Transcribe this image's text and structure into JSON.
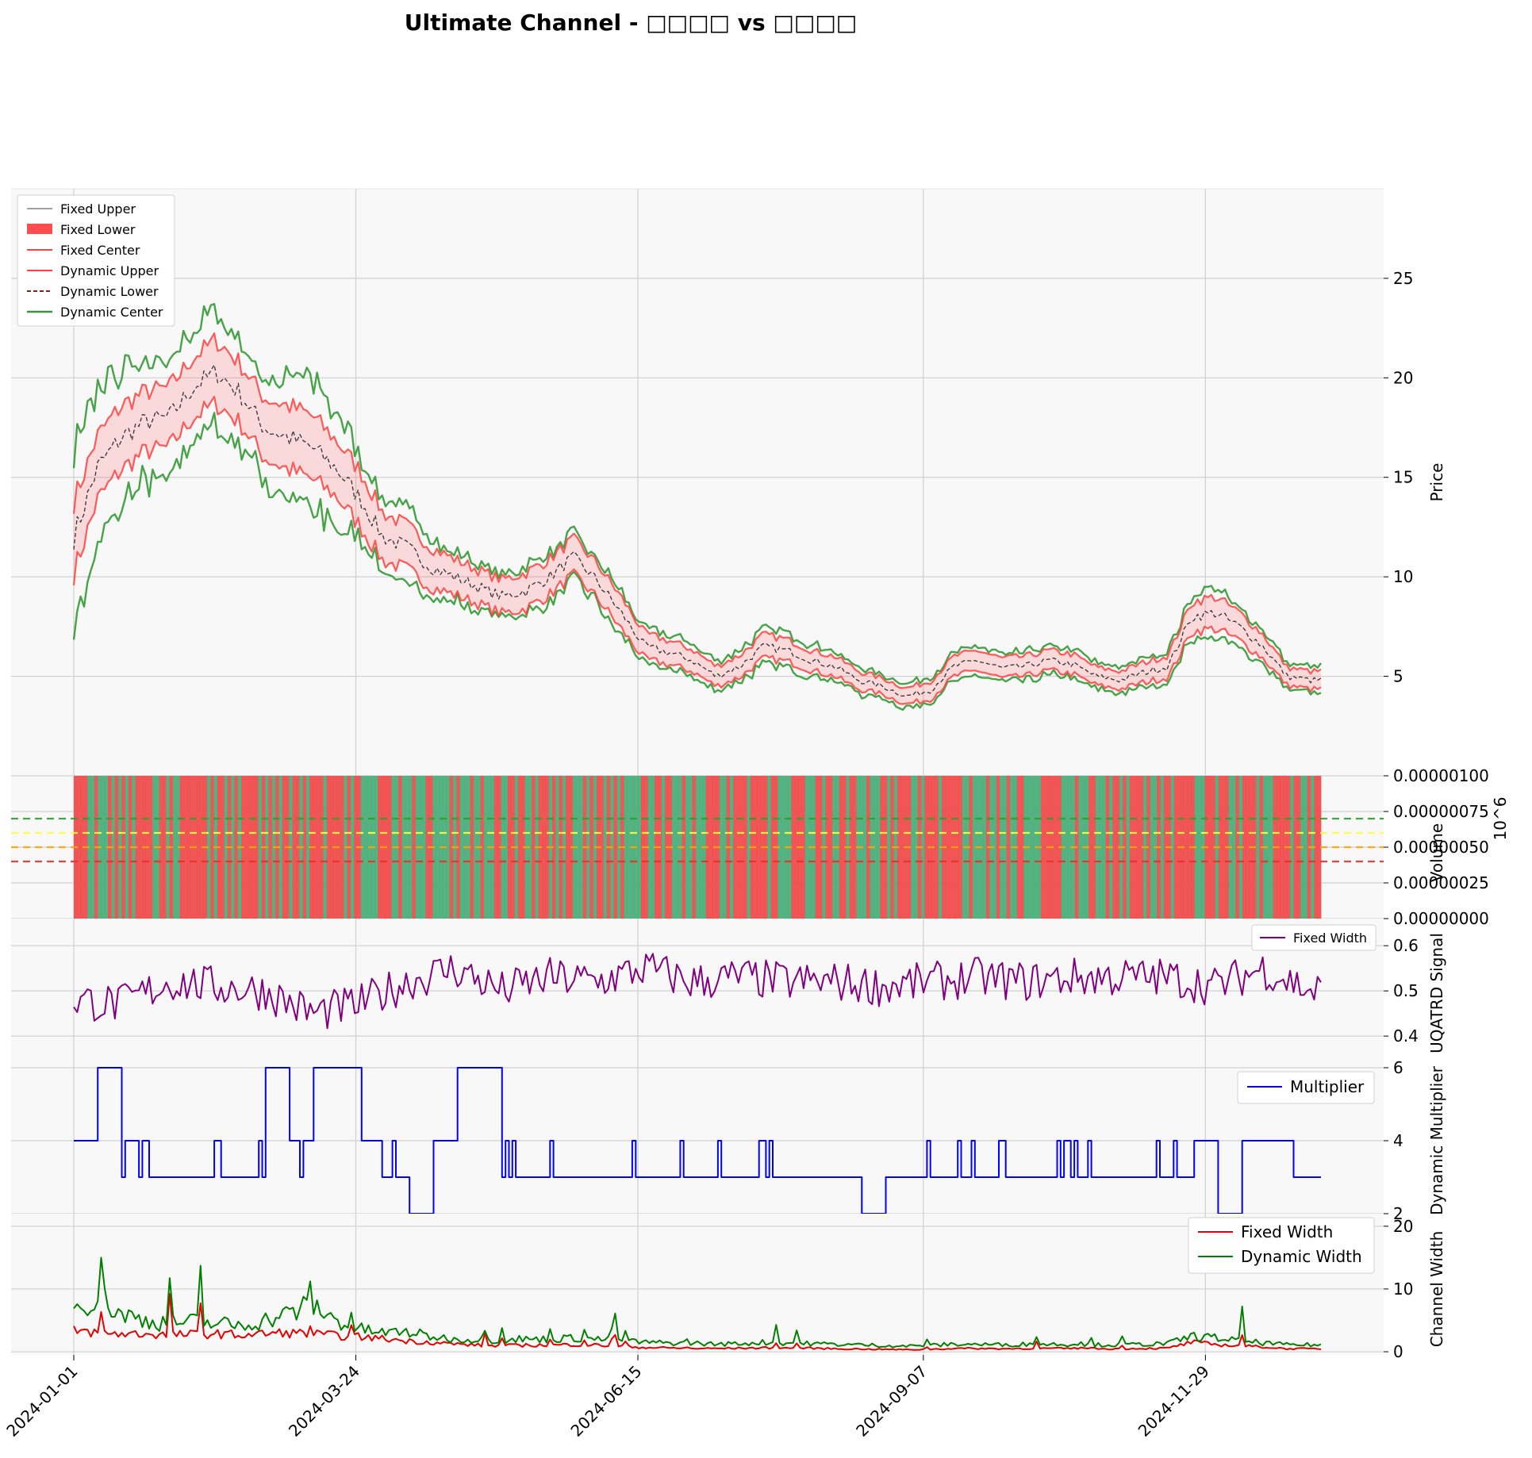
{
  "title": "Ultimate Channel - □□□□ vs □□□□",
  "x_axis": {
    "type": "date",
    "start": "2024-01-01",
    "end": "2025-01-02",
    "tick_labels": [
      "2024-01-01",
      "2024-03-24",
      "2024-06-15",
      "2024-09-07",
      "2024-11-29"
    ]
  },
  "colors": {
    "upper_line": "#808080",
    "fixed_fill": "#ff4d4d",
    "fixed_lines": "#ff4040",
    "dyn_lower": "#8b1a1a",
    "dynamic": "#339933",
    "center_black": "#333333",
    "uqatrd": "#800080",
    "multiplier": "#0000ff",
    "fixed_width": "#e60000",
    "dynamic_width": "#008000",
    "vol_up": "#4cae7a",
    "vol_down": "#ef4d4d",
    "panel_bg": "#f8f8f8",
    "grid": "#d0d0d0"
  },
  "chart_data": [
    {
      "type": "line",
      "panel": "price",
      "ylabel": "Price",
      "ylim": [
        0,
        29.5
      ],
      "yticks": [
        "5",
        "10",
        "15",
        "20",
        "25"
      ],
      "grid": true,
      "legend": "top-left",
      "series": [
        {
          "name": "Fixed Upper"
        },
        {
          "name": "Fixed Lower"
        },
        {
          "name": "Fixed Center"
        },
        {
          "name": "Dynamic Upper"
        },
        {
          "name": "Dynamic Lower"
        },
        {
          "name": "Dynamic Center"
        }
      ],
      "x": [
        "2024-01-01",
        "2024-01-08",
        "2024-01-15",
        "2024-01-22",
        "2024-01-29",
        "2024-02-05",
        "2024-02-12",
        "2024-02-19",
        "2024-02-26",
        "2024-03-04",
        "2024-03-11",
        "2024-03-18",
        "2024-03-25",
        "2024-04-01",
        "2024-04-08",
        "2024-04-15",
        "2024-04-22",
        "2024-04-29",
        "2024-05-06",
        "2024-05-13",
        "2024-05-20",
        "2024-05-27",
        "2024-06-03",
        "2024-06-10",
        "2024-06-17",
        "2024-06-24",
        "2024-07-01",
        "2024-07-08",
        "2024-07-15",
        "2024-07-22",
        "2024-07-29",
        "2024-08-05",
        "2024-08-12",
        "2024-08-19",
        "2024-08-26",
        "2024-09-02",
        "2024-09-09",
        "2024-09-16",
        "2024-09-23",
        "2024-09-30",
        "2024-10-07",
        "2024-10-14",
        "2024-10-21",
        "2024-10-28",
        "2024-11-04",
        "2024-11-11",
        "2024-11-18",
        "2024-11-25",
        "2024-12-02",
        "2024-12-09",
        "2024-12-16",
        "2024-12-23",
        "2024-12-30"
      ],
      "center": [
        12.0,
        15.5,
        17.0,
        17.8,
        18.0,
        19.5,
        20.3,
        19.2,
        17.5,
        17.0,
        16.5,
        15.5,
        14.0,
        12.0,
        11.5,
        10.5,
        10.0,
        9.5,
        9.0,
        9.3,
        10.0,
        11.0,
        9.8,
        8.2,
        6.5,
        6.2,
        5.8,
        5.0,
        5.5,
        6.5,
        6.3,
        5.8,
        5.5,
        4.8,
        4.5,
        4.0,
        4.3,
        5.5,
        5.8,
        5.4,
        5.5,
        5.8,
        5.6,
        5.0,
        4.8,
        5.2,
        5.5,
        8.0,
        8.2,
        7.5,
        6.5,
        5.0,
        4.8
      ],
      "fixed_halfwidth": [
        1.8,
        1.6,
        1.6,
        1.5,
        1.5,
        1.5,
        1.6,
        1.5,
        1.5,
        1.6,
        1.6,
        1.4,
        1.4,
        1.2,
        1.1,
        1.0,
        0.9,
        0.85,
        0.85,
        0.9,
        0.9,
        0.9,
        0.85,
        0.8,
        0.65,
        0.6,
        0.55,
        0.5,
        0.55,
        0.6,
        0.55,
        0.5,
        0.5,
        0.45,
        0.4,
        0.4,
        0.45,
        0.5,
        0.5,
        0.5,
        0.5,
        0.5,
        0.5,
        0.45,
        0.45,
        0.5,
        0.55,
        0.75,
        0.8,
        0.7,
        0.6,
        0.45,
        0.45
      ],
      "dynamic_halfwidth": [
        3.5,
        3.2,
        2.8,
        2.5,
        2.4,
        2.3,
        2.4,
        2.2,
        2.2,
        2.6,
        2.8,
        2.4,
        1.8,
        1.4,
        1.6,
        1.2,
        1.0,
        0.95,
        0.9,
        1.0,
        1.0,
        1.0,
        0.95,
        0.9,
        0.75,
        0.7,
        0.7,
        0.6,
        0.65,
        0.75,
        0.7,
        0.65,
        0.6,
        0.55,
        0.5,
        0.5,
        0.5,
        0.6,
        0.6,
        0.55,
        0.6,
        0.6,
        0.6,
        0.55,
        0.55,
        0.6,
        0.65,
        0.9,
        1.0,
        0.85,
        0.7,
        0.55,
        0.55
      ]
    },
    {
      "type": "bar",
      "panel": "volume",
      "ylabel": "Volume",
      "scale_label": "10^6",
      "ylim": [
        0,
        1e-06
      ],
      "yticks": [
        "0.00000000",
        "0.00000025",
        "0.00000050",
        "0.00000075",
        "0.00000100"
      ],
      "all_bars_value": 1e-06,
      "reference_lines": [
        {
          "value": 7e-07,
          "color": "#2ca02c"
        },
        {
          "value": 6e-07,
          "color": "#ffff33"
        },
        {
          "value": 5e-07,
          "color": "#ffa500"
        },
        {
          "value": 4e-07,
          "color": "#e83030"
        }
      ]
    },
    {
      "type": "line",
      "panel": "uqatrd",
      "ylabel": "UQATRD Signal",
      "ylim": [
        0.33,
        0.66
      ],
      "yticks": [
        "0.4",
        "0.5",
        "0.6"
      ],
      "legend": "top-right",
      "series_name": "Fixed Width",
      "x": [
        "2024-01-01",
        "2024-01-15",
        "2024-01-29",
        "2024-02-12",
        "2024-02-26",
        "2024-03-11",
        "2024-03-25",
        "2024-04-08",
        "2024-04-22",
        "2024-05-06",
        "2024-05-20",
        "2024-06-03",
        "2024-06-17",
        "2024-07-01",
        "2024-07-15",
        "2024-07-29",
        "2024-08-12",
        "2024-08-26",
        "2024-09-09",
        "2024-09-23",
        "2024-10-07",
        "2024-10-21",
        "2024-11-04",
        "2024-11-18",
        "2024-12-02",
        "2024-12-16",
        "2024-12-30"
      ],
      "values": [
        0.48,
        0.47,
        0.52,
        0.51,
        0.5,
        0.45,
        0.47,
        0.52,
        0.55,
        0.5,
        0.53,
        0.52,
        0.55,
        0.52,
        0.53,
        0.52,
        0.52,
        0.51,
        0.52,
        0.53,
        0.52,
        0.53,
        0.53,
        0.53,
        0.51,
        0.55,
        0.5
      ]
    },
    {
      "type": "line",
      "panel": "multiplier",
      "ylabel": "Dynamic Multiplier",
      "ylim": [
        2,
        6
      ],
      "yticks": [
        "2",
        "4",
        "6"
      ],
      "legend": "top-right",
      "series_name": "Multiplier",
      "x": [
        "2024-01-01",
        "2024-01-08",
        "2024-01-15",
        "2024-01-22",
        "2024-02-12",
        "2024-02-26",
        "2024-03-04",
        "2024-03-11",
        "2024-03-25",
        "2024-04-01",
        "2024-04-08",
        "2024-04-15",
        "2024-04-22",
        "2024-05-06",
        "2024-06-03",
        "2024-07-01",
        "2024-08-19",
        "2024-08-26",
        "2024-09-16",
        "2024-10-21",
        "2024-11-11",
        "2024-11-25",
        "2024-12-02",
        "2024-12-09",
        "2024-12-23",
        "2024-12-30"
      ],
      "values": [
        4,
        6,
        4,
        3,
        3,
        6,
        4,
        6,
        4,
        3,
        2,
        4,
        6,
        3,
        3,
        3,
        2,
        3,
        3,
        3,
        3,
        4,
        2,
        4,
        3,
        3
      ]
    },
    {
      "type": "line",
      "panel": "channel_width",
      "ylabel": "Channel Width",
      "ylim": [
        -0.5,
        22
      ],
      "yticks": [
        "0",
        "10",
        "20"
      ],
      "legend": "top-right",
      "series": [
        {
          "name": "Fixed Width",
          "values": [
            3.5,
            3.2,
            3.0,
            3.0,
            2.8,
            2.9,
            3.0,
            2.8,
            3.0,
            3.2,
            3.0,
            2.7,
            2.5,
            2.2,
            1.8,
            1.6,
            1.3,
            1.1,
            1.0,
            1.1,
            1.1,
            1.2,
            1.1,
            0.9,
            0.7,
            0.65,
            0.55,
            0.55,
            0.6,
            0.65,
            0.6,
            0.6,
            0.5,
            0.45,
            0.4,
            0.35,
            0.4,
            0.55,
            0.55,
            0.5,
            0.55,
            0.55,
            0.55,
            0.5,
            0.5,
            0.55,
            0.6,
            1.6,
            1.2,
            1.0,
            0.8,
            0.5,
            0.5
          ]
        },
        {
          "name": "Dynamic Width",
          "values": [
            7.0,
            9.0,
            6.0,
            5.0,
            4.5,
            4.8,
            4.5,
            4.2,
            5.0,
            6.0,
            7.5,
            5.0,
            3.6,
            3.0,
            3.2,
            2.4,
            2.0,
            1.9,
            1.8,
            2.0,
            2.0,
            2.2,
            2.0,
            1.8,
            1.5,
            1.4,
            1.4,
            1.2,
            1.3,
            1.5,
            1.4,
            1.3,
            1.2,
            1.1,
            1.0,
            0.9,
            1.0,
            1.2,
            1.2,
            1.1,
            1.2,
            1.2,
            1.2,
            1.1,
            1.1,
            1.2,
            1.3,
            2.5,
            2.2,
            1.8,
            1.4,
            1.1,
            1.1
          ]
        }
      ],
      "x_ref": "price"
    }
  ]
}
